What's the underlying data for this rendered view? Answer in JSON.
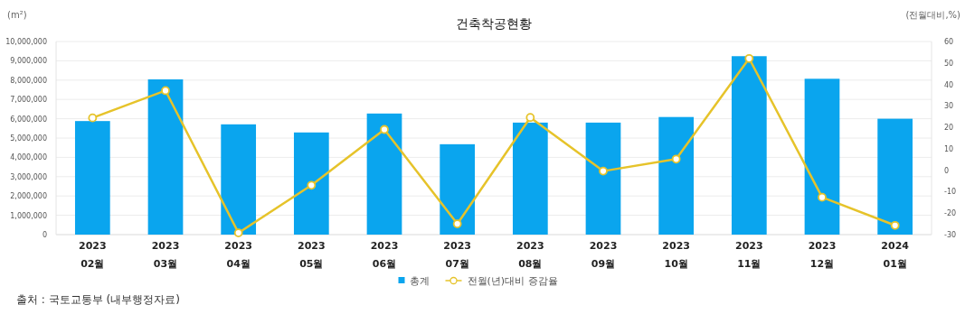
{
  "chart_data": {
    "type": "bar",
    "title": "건축착공현황",
    "ylabel": "(m²)",
    "y2label": "(전월대비,%)",
    "categories": [
      "2023\n02월",
      "2023\n03월",
      "2023\n04월",
      "2023\n05월",
      "2023\n06월",
      "2023\n07월",
      "2023\n08월",
      "2023\n09월",
      "2023\n10월",
      "2023\n11월",
      "2023\n12월",
      "2024\n01월"
    ],
    "series": [
      {
        "name": "총계",
        "color": "#0aa5ee",
        "values": [
          5880000,
          8040000,
          5710000,
          5290000,
          6270000,
          4680000,
          5800000,
          5800000,
          6090000,
          9240000,
          8070000,
          6000000
        ]
      },
      {
        "name": "전월(년)대비 증감율",
        "type": "line",
        "axis": "y2",
        "color": "#e6c32a",
        "marker": "circle",
        "values": [
          24.4,
          37.1,
          -29.2,
          -7.0,
          19.0,
          -25.0,
          24.6,
          -0.4,
          5.2,
          52.1,
          -12.6,
          -25.7
        ]
      }
    ],
    "ylim": [
      0,
      10000000
    ],
    "yticks": [
      0,
      {
        "value": 1000000,
        "label": "1,000,000"
      },
      {
        "value": 2000000,
        "label": "2,000,000"
      },
      {
        "value": 3000000,
        "label": "3,000,000"
      },
      {
        "value": 4000000,
        "label": "4,000,000"
      },
      {
        "value": 5000000,
        "label": "5,000,000"
      },
      {
        "value": 6000000,
        "label": "6,000,000"
      },
      {
        "value": 7000000,
        "label": "7,000,000"
      },
      {
        "value": 8000000,
        "label": "8,000,000"
      },
      {
        "value": 9000000,
        "label": "9,000,000"
      },
      {
        "value": 10000000,
        "label": "10,000,000"
      }
    ],
    "y2lim": [
      -30,
      60
    ],
    "y2ticks": [
      -30,
      -20,
      -10,
      0,
      10,
      20,
      30,
      40,
      50,
      60
    ],
    "grid": "y",
    "legend": "bottom",
    "annotations": [
      "출처 : 국토교통부 (내부행정자료)"
    ]
  }
}
